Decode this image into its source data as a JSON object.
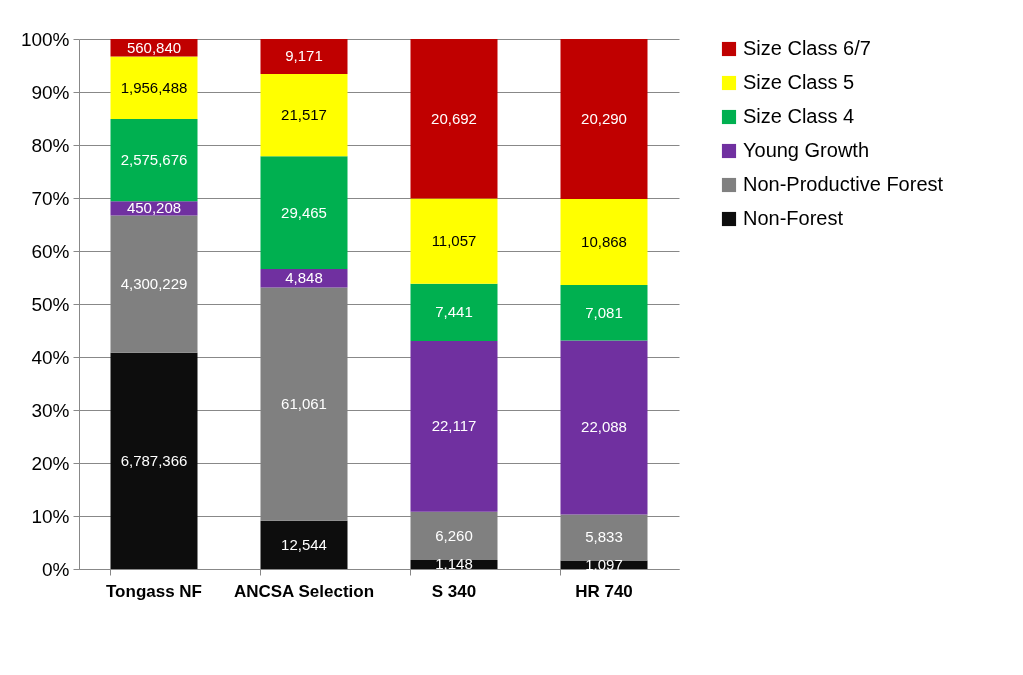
{
  "chart_data": {
    "type": "bar",
    "stacked": true,
    "categories": [
      "Tongass NF",
      "ANCSA Selection",
      "S 340",
      "HR 740"
    ],
    "series": [
      {
        "name": "Non-Forest",
        "color": "#0d0d0d",
        "values": [
          40.8,
          9.1,
          1.7,
          1.6
        ]
      },
      {
        "name": "Non-Productive Forest",
        "color": "#808080",
        "values": [
          25.9,
          44.0,
          9.1,
          8.7
        ]
      },
      {
        "name": "Young Growth",
        "color": "#7030a0",
        "values": [
          2.7,
          3.5,
          32.2,
          32.8
        ]
      },
      {
        "name": "Size Class 4",
        "color": "#00b050",
        "values": [
          15.5,
          21.3,
          10.8,
          10.5
        ]
      },
      {
        "name": "Size Class 5",
        "color": "#ffff00",
        "values": [
          11.8,
          15.5,
          16.1,
          16.2
        ]
      },
      {
        "name": "Size Class 6/7",
        "color": "#c00000",
        "values": [
          3.3,
          6.6,
          30.1,
          30.2
        ]
      }
    ],
    "annotations": [
      "6,787,366",
      "12,544",
      "1,148",
      "1,097",
      "4,300,229",
      "61,061",
      "6,260",
      "5,833",
      "450,208",
      "4,848",
      "22,117",
      "22,088",
      "2,575,676",
      "29,465",
      "7,441",
      "7,081",
      "1,956,488",
      "21,517",
      "11,057",
      "10,868",
      "560,840",
      "9,171",
      "20,692",
      "20,290"
    ],
    "ylim": [
      0,
      100
    ],
    "yticks": [
      {
        "value": 0,
        "label": "0%"
      },
      {
        "value": 10,
        "label": "10%"
      },
      {
        "value": 20,
        "label": "20%"
      },
      {
        "value": 30,
        "label": "30%"
      },
      {
        "value": 40,
        "label": "40%"
      },
      {
        "value": 50,
        "label": "50%"
      },
      {
        "value": 60,
        "label": "60%"
      },
      {
        "value": 70,
        "label": "70%"
      },
      {
        "value": 80,
        "label": "80%"
      },
      {
        "value": 90,
        "label": "90%"
      },
      {
        "value": 100,
        "label": "100%"
      }
    ],
    "grid": "y",
    "legend": "right"
  }
}
